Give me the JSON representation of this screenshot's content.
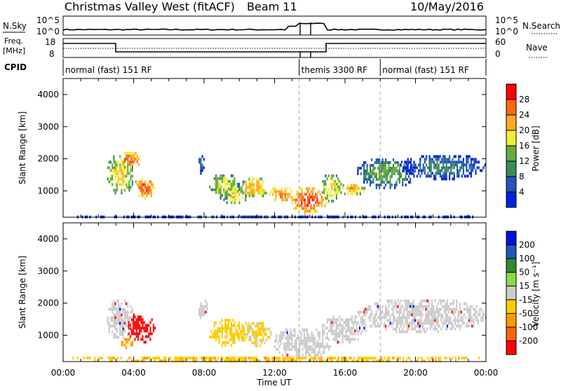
{
  "header": {
    "station": "Christmas Valley West (fitACF)",
    "beam": "Beam 11",
    "date": "10/May/2016"
  },
  "summary": {
    "nsky_label": "N.Sky",
    "nsearch_label": "N.Search",
    "freq_label_1": "Freq.",
    "freq_label_2": "[MHz]",
    "nave_label": "Nave",
    "cpid_label": "CPID",
    "nsky_ticks": [
      "10^5",
      "10^0"
    ],
    "nsearch_ticks": [
      "10^5",
      "10^0"
    ],
    "freq_ticks": [
      "18",
      "8"
    ],
    "nave_ticks": [
      "60",
      "0"
    ]
  },
  "cpid_segments": [
    {
      "label": "normal (fast) 151 RF",
      "start": 0.0,
      "end": 13.4
    },
    {
      "label": "themis 3300 RF",
      "start": 13.4,
      "end": 18.0
    },
    {
      "label": "normal (fast) 151 RF",
      "start": 18.0,
      "end": 24.0
    }
  ],
  "colorbars": {
    "power": {
      "title": "Power [dB]",
      "ticks": [
        "28",
        "24",
        "20",
        "16",
        "12",
        "8",
        "4"
      ],
      "colors": [
        "#0022dd",
        "#2255bb",
        "#3a8a5a",
        "#66aa44",
        "#eeee33",
        "#ffaa22",
        "#ff6611",
        "#ff0000"
      ]
    },
    "velocity": {
      "title": "Velocity [m s⁻¹]",
      "ticks": [
        "200",
        "100",
        "50",
        "15",
        "-15",
        "-50",
        "-100",
        "-200"
      ],
      "colors": [
        "#ff0000",
        "#ff6600",
        "#ff9900",
        "#ffcc00",
        "#cccccc",
        "#88dd44",
        "#338833",
        "#2255bb",
        "#0011dd"
      ]
    }
  },
  "chart_data": {
    "type": "heatmap",
    "xlabel": "Time UT",
    "ylabel": "Slant Range [km]",
    "x_range_hours": [
      0,
      24
    ],
    "y_range_km": [
      180,
      4500
    ],
    "x_tick_labels": [
      "00:00",
      "04:00",
      "08:00",
      "12:00",
      "16:00",
      "20:00",
      "00:00"
    ],
    "y_tick_labels": [
      "1000",
      "2000",
      "3000",
      "4000"
    ],
    "x_ticks_hours": [
      0,
      4,
      8,
      12,
      16,
      20,
      24
    ],
    "y_ticks_km": [
      1000,
      2000,
      3000,
      4000
    ],
    "dashed_markers_hours": [
      13.4,
      18.0
    ],
    "power_blobs": [
      {
        "t0": 2.4,
        "t1": 4.0,
        "r0": 900,
        "r1": 2200,
        "db": 20
      },
      {
        "t0": 3.2,
        "t1": 4.4,
        "r0": 1700,
        "r1": 2300,
        "db": 26
      },
      {
        "t0": 4.0,
        "t1": 5.2,
        "r0": 800,
        "r1": 1500,
        "db": 27
      },
      {
        "t0": 7.6,
        "t1": 8.0,
        "r0": 1500,
        "r1": 2200,
        "db": 8
      },
      {
        "t0": 8.2,
        "t1": 10.0,
        "r0": 800,
        "r1": 1600,
        "db": 18
      },
      {
        "t0": 9.0,
        "t1": 10.4,
        "r0": 600,
        "r1": 1200,
        "db": 20
      },
      {
        "t0": 10.0,
        "t1": 11.6,
        "r0": 800,
        "r1": 1500,
        "db": 22
      },
      {
        "t0": 11.6,
        "t1": 13.0,
        "r0": 700,
        "r1": 1200,
        "db": 25
      },
      {
        "t0": 12.8,
        "t1": 15.0,
        "r0": 300,
        "r1": 1200,
        "db": 28
      },
      {
        "t0": 14.6,
        "t1": 15.8,
        "r0": 700,
        "r1": 1600,
        "db": 20
      },
      {
        "t0": 15.6,
        "t1": 17.2,
        "r0": 900,
        "r1": 1300,
        "db": 22
      },
      {
        "t0": 16.6,
        "t1": 20.0,
        "r0": 1100,
        "r1": 2100,
        "db": 14
      },
      {
        "t0": 19.0,
        "t1": 24.0,
        "r0": 1400,
        "r1": 2200,
        "db": 10
      },
      {
        "t0": 0.0,
        "t1": 24.0,
        "r0": 190,
        "r1": 320,
        "db": 6
      }
    ],
    "velocity_blobs": [
      {
        "t0": 2.4,
        "t1": 4.0,
        "r0": 900,
        "r1": 2200,
        "v": 0
      },
      {
        "t0": 3.6,
        "t1": 5.2,
        "r0": 800,
        "r1": 1700,
        "v": -220
      },
      {
        "t0": 3.2,
        "t1": 4.0,
        "r0": 600,
        "r1": 1000,
        "v": -60
      },
      {
        "t0": 7.6,
        "t1": 8.2,
        "r0": 1500,
        "r1": 2200,
        "v": 0
      },
      {
        "t0": 8.2,
        "t1": 10.4,
        "r0": 700,
        "r1": 1600,
        "v": -30
      },
      {
        "t0": 10.0,
        "t1": 11.8,
        "r0": 700,
        "r1": 1500,
        "v": -20
      },
      {
        "t0": 11.8,
        "t1": 15.2,
        "r0": 300,
        "r1": 1300,
        "v": 0
      },
      {
        "t0": 14.6,
        "t1": 17.2,
        "r0": 800,
        "r1": 1700,
        "v": 0
      },
      {
        "t0": 16.6,
        "t1": 24.0,
        "r0": 1100,
        "r1": 2200,
        "v": 0
      },
      {
        "t0": 0.0,
        "t1": 24.0,
        "r0": 190,
        "r1": 420,
        "v": -40
      }
    ]
  }
}
